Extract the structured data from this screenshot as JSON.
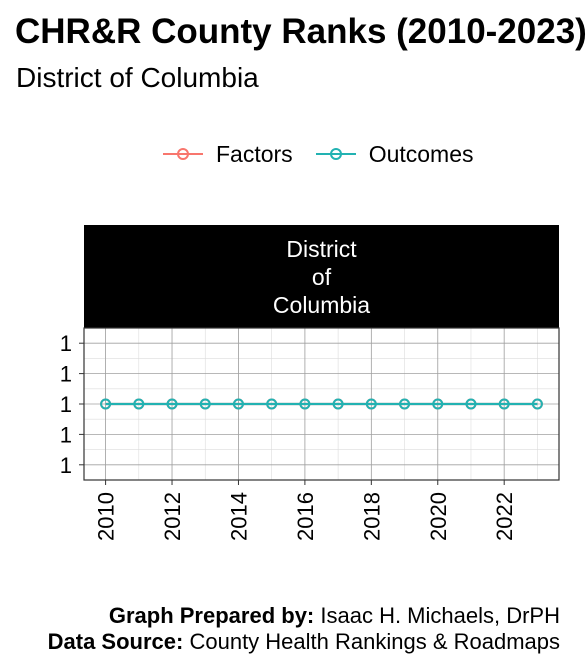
{
  "title": "CHR&R County Ranks (2010-2023)",
  "subtitle": "District of Columbia",
  "facet_label": "District\nof\nColumbia",
  "legend": [
    {
      "label": "Factors",
      "color": "#f8766d"
    },
    {
      "label": "Outcomes",
      "color": "#22b2b2"
    }
  ],
  "caption": {
    "prepared_label": "Graph Prepared by:",
    "prepared_value": "Isaac H. Michaels, DrPH",
    "source_label": "Data Source:",
    "source_value": "County Health Rankings & Roadmaps"
  },
  "chart_data": {
    "type": "line",
    "title": "CHR&R County Ranks (2010-2023)",
    "subtitle": "District of Columbia",
    "facet": "District of Columbia",
    "x": [
      2010,
      2011,
      2012,
      2013,
      2014,
      2015,
      2016,
      2017,
      2018,
      2019,
      2020,
      2021,
      2022,
      2023
    ],
    "x_ticks": [
      "2010",
      "2012",
      "2014",
      "2016",
      "2018",
      "2020",
      "2022"
    ],
    "y_ticks": [
      "1",
      "1",
      "1",
      "1",
      "1"
    ],
    "series": [
      {
        "name": "Factors",
        "color": "#f8766d",
        "values": [
          1,
          1,
          1,
          1,
          1,
          1,
          1,
          1,
          1,
          1,
          1,
          1,
          1,
          1
        ]
      },
      {
        "name": "Outcomes",
        "color": "#22b2b2",
        "values": [
          1,
          1,
          1,
          1,
          1,
          1,
          1,
          1,
          1,
          1,
          1,
          1,
          1,
          1
        ]
      }
    ],
    "ylim": [
      0.95,
      1.05
    ],
    "grid": true,
    "legend_position": "top"
  }
}
